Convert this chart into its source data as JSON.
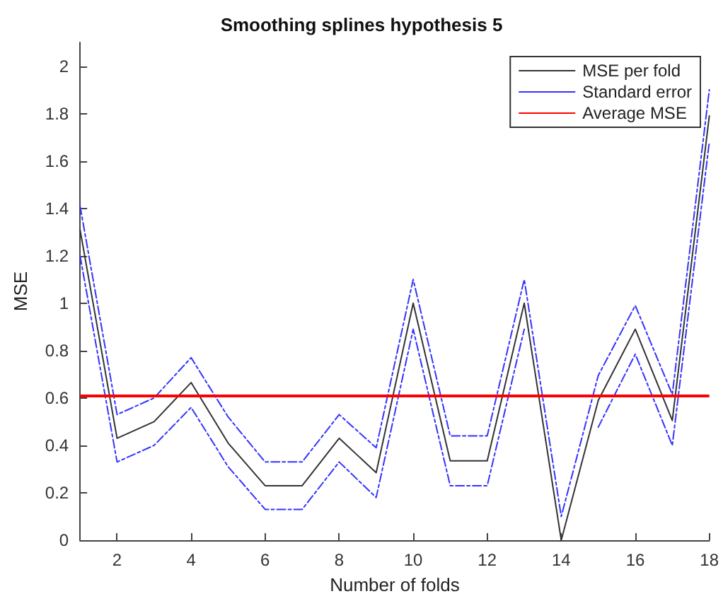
{
  "chart_data": {
    "type": "line",
    "title": "Smoothing splines hypothesis 5",
    "xlabel": "Number of folds",
    "ylabel": "MSE",
    "x": [
      1,
      2,
      3,
      4,
      5,
      6,
      7,
      8,
      9,
      10,
      11,
      12,
      13,
      14,
      15,
      16,
      17,
      18
    ],
    "series": [
      {
        "name": "MSE per fold",
        "color": "#333333",
        "line_style": "solid",
        "values": [
          1.31,
          0.43,
          0.5,
          0.665,
          0.41,
          0.23,
          0.23,
          0.43,
          0.285,
          1.0,
          0.335,
          0.335,
          1.0,
          0,
          0.59,
          0.89,
          0.505,
          1.79
        ]
      },
      {
        "name": "Standard error",
        "color": "#3333ff",
        "line_style": "dashed",
        "values": [
          1.41,
          0.53,
          0.6,
          0.77,
          0.52,
          0.33,
          0.33,
          0.53,
          0.39,
          1.1,
          0.44,
          0.44,
          1.1,
          0.1,
          0.695,
          0.99,
          0.615,
          1.9
        ]
      },
      {
        "color": "#3333ff",
        "line_style": "dashed",
        "values": [
          1.2,
          0.33,
          0.4,
          0.56,
          0.31,
          0.13,
          0.13,
          0.33,
          0.18,
          0.89,
          0.23,
          0.23,
          0.89,
          null,
          0.477,
          0.785,
          0.4,
          1.68
        ]
      }
    ],
    "ref_lines": [
      {
        "axis": "y",
        "value": 0.61,
        "label": "Average MSE",
        "color": "#ff0000"
      }
    ],
    "xlim": [
      1,
      18
    ],
    "xticks": [
      2,
      4,
      6,
      8,
      10,
      12,
      14,
      16,
      18
    ],
    "ylim": [
      0,
      2.1
    ],
    "yticks": [
      0,
      0.2,
      0.4,
      0.6,
      0.8,
      1,
      1.2,
      1.4,
      1.6,
      1.8,
      2
    ],
    "grid": false,
    "legend": "top right",
    "marker": "none"
  }
}
